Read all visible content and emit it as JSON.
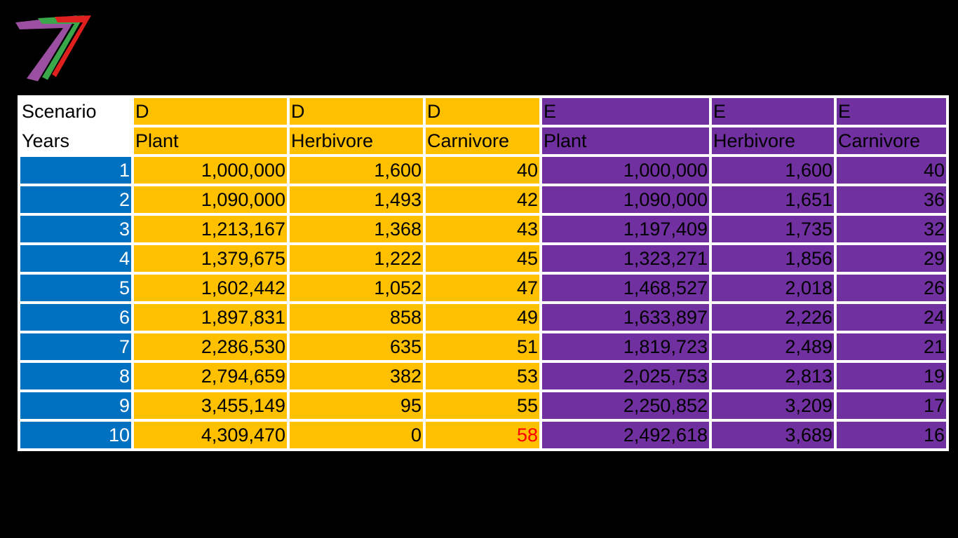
{
  "colors": {
    "background": "#000000",
    "years_column": "#0070c0",
    "scenario_d": "#ffc000",
    "scenario_e": "#7030a0",
    "highlight": "#ff0000",
    "logo_purple": "#9b4fa0",
    "logo_green": "#3aa84a",
    "logo_red": "#e0201e"
  },
  "logo": {
    "icon": "seven-stripe-logo-icon"
  },
  "table": {
    "header_scenario": {
      "label": "Scenario",
      "cells": [
        "D",
        "D",
        "D",
        "E",
        "E",
        "E"
      ]
    },
    "header_years": {
      "label": "Years",
      "cells": [
        "Plant",
        "Herbivore",
        "Carnivore",
        "Plant",
        "Herbivore",
        "Carnivore"
      ]
    },
    "rows": [
      {
        "year": "1",
        "d_plant": "1,000,000",
        "d_herbivore": "1,600",
        "d_carnivore": "40",
        "e_plant": "1,000,000",
        "e_herbivore": "1,600",
        "e_carnivore": "40"
      },
      {
        "year": "2",
        "d_plant": "1,090,000",
        "d_herbivore": "1,493",
        "d_carnivore": "42",
        "e_plant": "1,090,000",
        "e_herbivore": "1,651",
        "e_carnivore": "36"
      },
      {
        "year": "3",
        "d_plant": "1,213,167",
        "d_herbivore": "1,368",
        "d_carnivore": "43",
        "e_plant": "1,197,409",
        "e_herbivore": "1,735",
        "e_carnivore": "32"
      },
      {
        "year": "4",
        "d_plant": "1,379,675",
        "d_herbivore": "1,222",
        "d_carnivore": "45",
        "e_plant": "1,323,271",
        "e_herbivore": "1,856",
        "e_carnivore": "29"
      },
      {
        "year": "5",
        "d_plant": "1,602,442",
        "d_herbivore": "1,052",
        "d_carnivore": "47",
        "e_plant": "1,468,527",
        "e_herbivore": "2,018",
        "e_carnivore": "26"
      },
      {
        "year": "6",
        "d_plant": "1,897,831",
        "d_herbivore": "858",
        "d_carnivore": "49",
        "e_plant": "1,633,897",
        "e_herbivore": "2,226",
        "e_carnivore": "24"
      },
      {
        "year": "7",
        "d_plant": "2,286,530",
        "d_herbivore": "635",
        "d_carnivore": "51",
        "e_plant": "1,819,723",
        "e_herbivore": "2,489",
        "e_carnivore": "21"
      },
      {
        "year": "8",
        "d_plant": "2,794,659",
        "d_herbivore": "382",
        "d_carnivore": "53",
        "e_plant": "2,025,753",
        "e_herbivore": "2,813",
        "e_carnivore": "19"
      },
      {
        "year": "9",
        "d_plant": "3,455,149",
        "d_herbivore": "95",
        "d_carnivore": "55",
        "e_plant": "2,250,852",
        "e_herbivore": "3,209",
        "e_carnivore": "17"
      },
      {
        "year": "10",
        "d_plant": "4,309,470",
        "d_herbivore": "0",
        "d_carnivore": "58",
        "e_plant": "2,492,618",
        "e_herbivore": "3,689",
        "e_carnivore": "16"
      }
    ]
  }
}
